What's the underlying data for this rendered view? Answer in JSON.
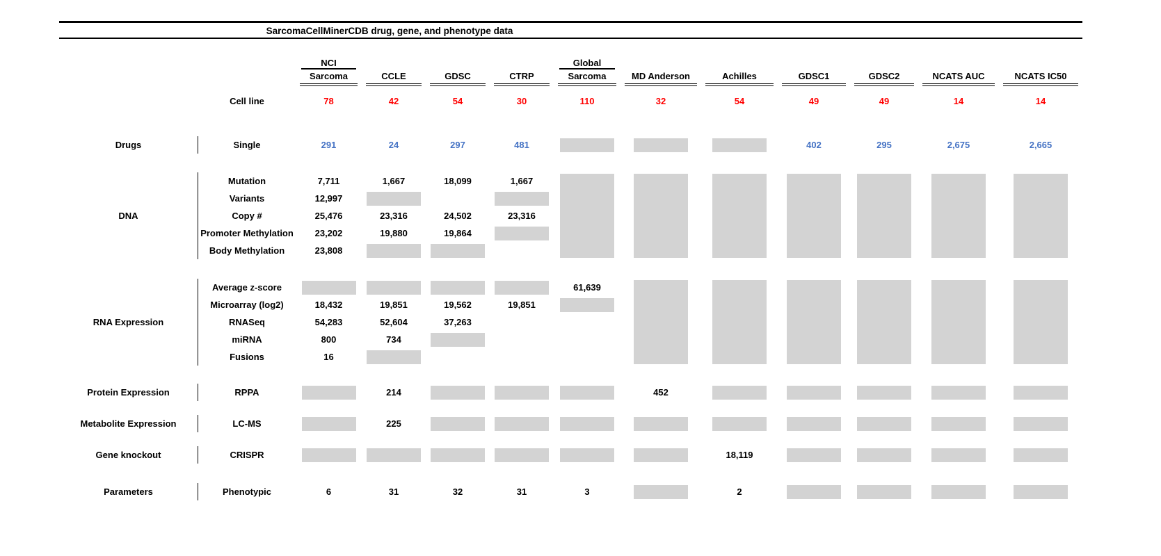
{
  "chart_data": {
    "type": "table",
    "title": "SarcomaCellMinerCDB drug, gene, and phenotype data",
    "colors": {
      "red": "#FF0000",
      "blue": "#4472C4",
      "gray_box": "#D3D3D3"
    },
    "columns": [
      {
        "top": "NCI",
        "name": "Sarcoma"
      },
      {
        "top": "",
        "name": "CCLE"
      },
      {
        "top": "",
        "name": "GDSC"
      },
      {
        "top": "",
        "name": "CTRP"
      },
      {
        "top": "Global",
        "name": "Sarcoma"
      },
      {
        "top": "",
        "name": "MD Anderson"
      },
      {
        "top": "",
        "name": "Achilles"
      },
      {
        "top": "",
        "name": "GDSC1"
      },
      {
        "top": "",
        "name": "GDSC2"
      },
      {
        "top": "",
        "name": "NCATS AUC"
      },
      {
        "top": "",
        "name": "NCATS IC50"
      }
    ],
    "cell_line": {
      "label": "Cell line",
      "values": [
        "78",
        "42",
        "54",
        "30",
        "110",
        "32",
        "54",
        "49",
        "49",
        "14",
        "14"
      ]
    },
    "groups": [
      {
        "name": "Drugs",
        "rows": [
          {
            "label": "Single",
            "style": "blue",
            "cells": [
              "291",
              "24",
              "297",
              "481",
              {
                "g": 1
              },
              {
                "g": 1
              },
              {
                "g": 1
              },
              "402",
              "295",
              "2,675",
              "2,665"
            ]
          }
        ]
      },
      {
        "name": "DNA",
        "rows": [
          {
            "label": "Mutation",
            "cells": [
              "7,711",
              "1,667",
              "18,099",
              "1,667",
              {
                "g": 5
              },
              {
                "g": 5
              },
              {
                "g": 5
              },
              {
                "g": 5
              },
              {
                "g": 5
              },
              {
                "g": 5
              },
              {
                "g": 5
              }
            ]
          },
          {
            "label": "Variants",
            "cells": [
              "12,997",
              {
                "g": 1
              },
              null,
              {
                "g": 1
              },
              null,
              null,
              null,
              null,
              null,
              null,
              null
            ]
          },
          {
            "label": "Copy #",
            "cells": [
              "25,476",
              "23,316",
              "24,502",
              "23,316",
              null,
              null,
              null,
              null,
              null,
              null,
              null
            ]
          },
          {
            "label": "Promoter Methylation",
            "cells": [
              "23,202",
              "19,880",
              "19,864",
              {
                "g": 1
              },
              null,
              null,
              null,
              null,
              null,
              null,
              null
            ]
          },
          {
            "label": "Body Methylation",
            "cells": [
              "23,808",
              {
                "g": 1
              },
              {
                "g": 1
              },
              null,
              null,
              null,
              null,
              null,
              null,
              null,
              null
            ]
          }
        ]
      },
      {
        "name": "RNA Expression",
        "rows": [
          {
            "label": "Average z-score",
            "cells": [
              {
                "g": 1
              },
              {
                "g": 1
              },
              {
                "g": 1
              },
              {
                "g": 1
              },
              "61,639",
              {
                "g": 5
              },
              {
                "g": 5
              },
              {
                "g": 5
              },
              {
                "g": 5
              },
              {
                "g": 5
              },
              {
                "g": 5
              }
            ]
          },
          {
            "label": "Microarray (log2)",
            "cells": [
              "18,432",
              "19,851",
              "19,562",
              "19,851",
              {
                "g": 1
              },
              null,
              null,
              null,
              null,
              null,
              null
            ]
          },
          {
            "label": "RNASeq",
            "cells": [
              "54,283",
              "52,604",
              "37,263",
              null,
              null,
              null,
              null,
              null,
              null,
              null,
              null
            ]
          },
          {
            "label": "miRNA",
            "cells": [
              "800",
              "734",
              {
                "g": 1
              },
              null,
              null,
              null,
              null,
              null,
              null,
              null,
              null
            ]
          },
          {
            "label": "Fusions",
            "cells": [
              "16",
              {
                "g": 1
              },
              null,
              null,
              null,
              null,
              null,
              null,
              null,
              null,
              null
            ]
          }
        ]
      },
      {
        "name": "Protein Expression",
        "rows": [
          {
            "label": "RPPA",
            "cells": [
              {
                "g": 1
              },
              "214",
              {
                "g": 1
              },
              {
                "g": 1
              },
              {
                "g": 1
              },
              "452",
              {
                "g": 1
              },
              {
                "g": 1
              },
              {
                "g": 1
              },
              {
                "g": 1
              },
              {
                "g": 1
              }
            ]
          }
        ]
      },
      {
        "name": "Metabolite Expression",
        "rows": [
          {
            "label": "LC-MS",
            "cells": [
              {
                "g": 1
              },
              "225",
              {
                "g": 1
              },
              {
                "g": 1
              },
              {
                "g": 1
              },
              {
                "g": 1
              },
              {
                "g": 1
              },
              {
                "g": 1
              },
              {
                "g": 1
              },
              {
                "g": 1
              },
              {
                "g": 1
              }
            ]
          }
        ]
      },
      {
        "name": "Gene knockout",
        "rows": [
          {
            "label": "CRISPR",
            "cells": [
              {
                "g": 1
              },
              {
                "g": 1
              },
              {
                "g": 1
              },
              {
                "g": 1
              },
              {
                "g": 1
              },
              {
                "g": 1
              },
              "18,119",
              {
                "g": 1
              },
              {
                "g": 1
              },
              {
                "g": 1
              },
              {
                "g": 1
              }
            ]
          }
        ]
      },
      {
        "name": "Parameters",
        "rows": [
          {
            "label": "Phenotypic",
            "cells": [
              "6",
              "31",
              "32",
              "31",
              "3",
              {
                "g": 1
              },
              "2",
              {
                "g": 1
              },
              {
                "g": 1
              },
              {
                "g": 1
              },
              {
                "g": 1
              }
            ]
          }
        ]
      }
    ]
  }
}
